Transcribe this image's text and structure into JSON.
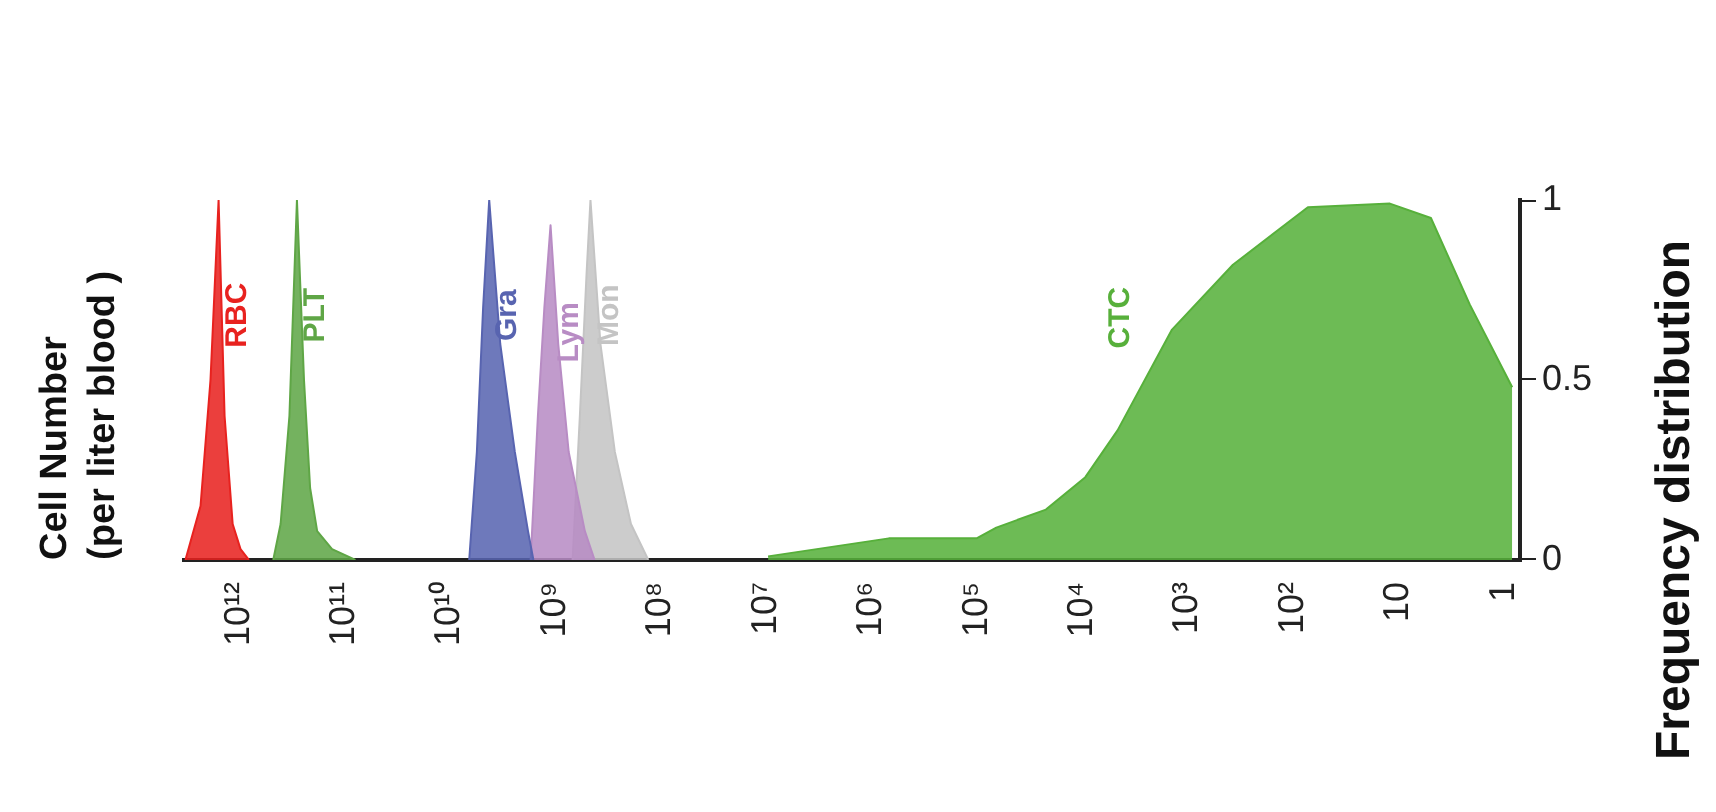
{
  "chart_data": {
    "type": "area",
    "annotations": [
      "Cell Number\n(per liter blood )"
    ],
    "ylabel": "Frequency distribution",
    "log": "x",
    "xlim": [
      3300000000000.0,
      0.7
    ],
    "ylim": [
      0,
      1
    ],
    "xticks": [
      {
        "value": 1000000000000.0,
        "label": "10¹²"
      },
      {
        "value": 100000000000.0,
        "label": "10¹¹"
      },
      {
        "value": 10000000000.0,
        "label": "10¹⁰"
      },
      {
        "value": 1000000000.0,
        "label": "10⁹"
      },
      {
        "value": 100000000.0,
        "label": "10⁸"
      },
      {
        "value": 10000000.0,
        "label": "10⁷"
      },
      {
        "value": 1000000.0,
        "label": "10⁶"
      },
      {
        "value": 100000.0,
        "label": "10⁵"
      },
      {
        "value": 10000.0,
        "label": "10⁴"
      },
      {
        "value": 1000.0,
        "label": "10³"
      },
      {
        "value": 100,
        "label": "10²"
      },
      10,
      1
    ],
    "yticks": [
      0,
      0.5,
      1
    ],
    "grid": false,
    "legend": false,
    "series": [
      {
        "name": "RBC",
        "color": "#e8221f",
        "x": [
          3200000000000.0,
          2300000000000.0,
          1850000000000.0,
          1550000000000.0,
          1360000000000.0,
          1140000000000.0,
          960000000000.0,
          800000000000.0
        ],
        "values": [
          0,
          0.15,
          0.5,
          1,
          0.4,
          0.1,
          0.03,
          0
        ]
      },
      {
        "name": "PLT",
        "color": "#5fa646",
        "x": [
          470000000000.0,
          400000000000.0,
          330000000000.0,
          280000000000.0,
          240000000000.0,
          210000000000.0,
          180000000000.0,
          130000000000.0,
          78000000000.0
        ],
        "values": [
          0,
          0.1,
          0.4,
          1,
          0.5,
          0.2,
          0.08,
          0.03,
          0
        ]
      },
      {
        "name": "Gra",
        "color": "#5864b0",
        "x": [
          6500000000.0,
          5500000000.0,
          4800000000.0,
          4200000000.0,
          3300000000.0,
          2400000000.0,
          1800000000.0,
          1600000000.0
        ],
        "values": [
          0,
          0.3,
          0.7,
          1,
          0.6,
          0.3,
          0.08,
          0
        ]
      },
      {
        "name": "Lym",
        "color": "#b88cc4",
        "x": [
          1700000000.0,
          1450000000.0,
          1260000000.0,
          1100000000.0,
          930000000.0,
          740000000.0,
          520000000.0,
          420000000.0
        ],
        "values": [
          0,
          0.4,
          0.7,
          0.93,
          0.6,
          0.3,
          0.08,
          0
        ]
      },
      {
        "name": "Mon",
        "color": "#c4c4c4",
        "x": [
          680000000.0,
          580000000.0,
          500000000.0,
          460000000.0,
          370000000.0,
          270000000.0,
          190000000.0,
          130000000.0
        ],
        "values": [
          0,
          0.4,
          0.8,
          1,
          0.6,
          0.3,
          0.1,
          0
        ]
      },
      {
        "name": "CTC",
        "color": "#57b03b",
        "x": [
          9500000.0,
          680000.0,
          100000.0,
          65000.0,
          22000.0,
          9300.0,
          4600.0,
          1400.0,
          370,
          72,
          12,
          4.9,
          2.1,
          0.83
        ],
        "values": [
          0.01,
          0.06,
          0.06,
          0.09,
          0.14,
          0.23,
          0.36,
          0.64,
          0.82,
          0.98,
          0.99,
          0.95,
          0.71,
          0.48
        ]
      }
    ]
  }
}
